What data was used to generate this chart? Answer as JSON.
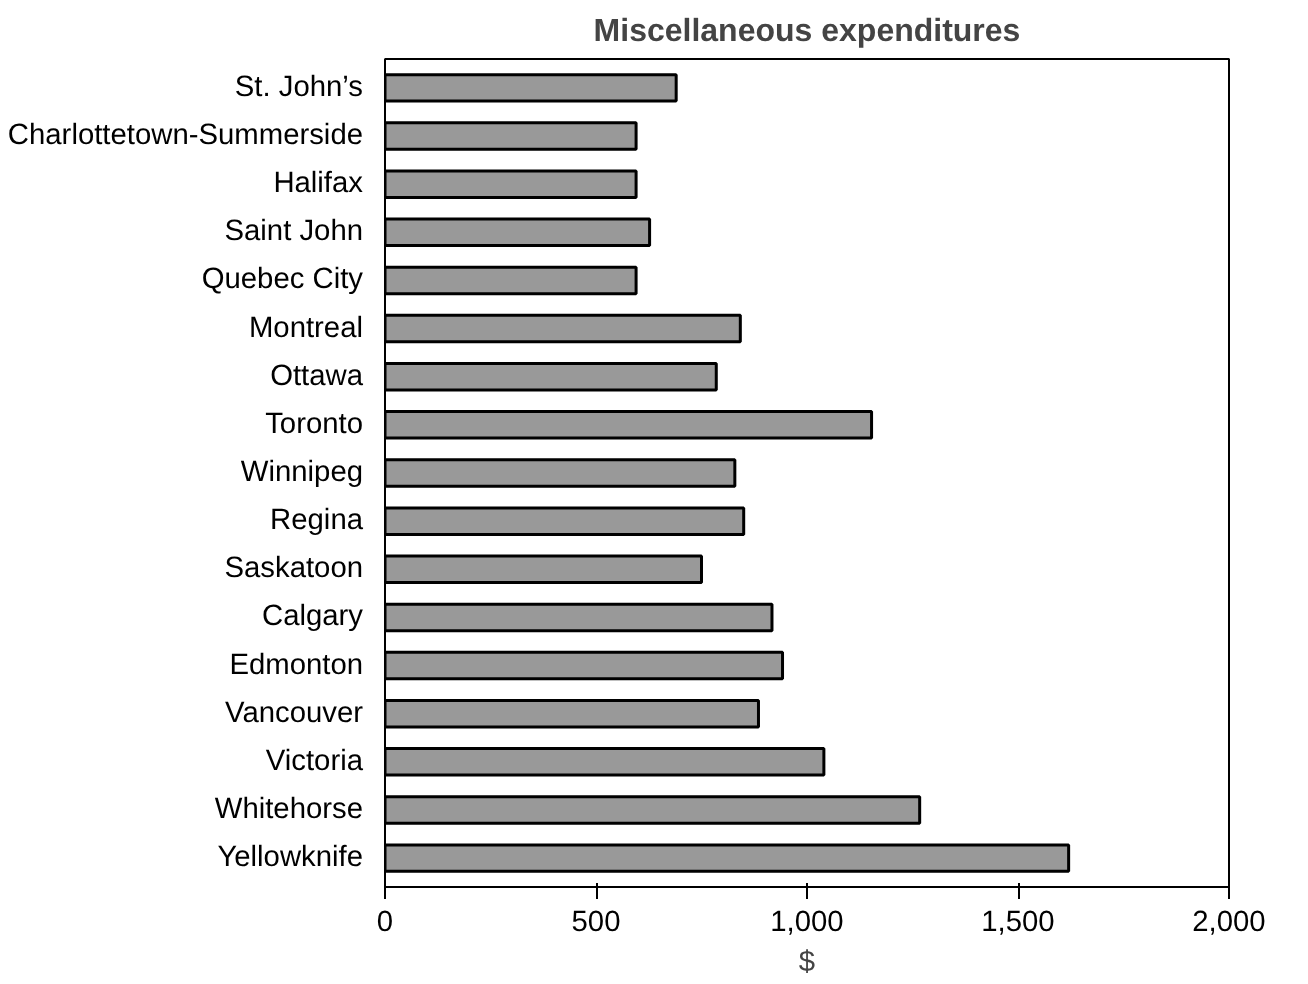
{
  "chart_data": {
    "type": "bar",
    "orientation": "horizontal",
    "title": "Miscellaneous expenditures",
    "xlabel": "$",
    "categories": [
      "St. John’s",
      "Charlottetown-Summerside",
      "Halifax",
      "Saint John",
      "Quebec City",
      "Montreal",
      "Ottawa",
      "Toronto",
      "Winnipeg",
      "Regina",
      "Saskatoon",
      "Calgary",
      "Edmonton",
      "Vancouver",
      "Victoria",
      "Whitehorse",
      "Yellowknife"
    ],
    "values": [
      690,
      595,
      595,
      627,
      595,
      842,
      785,
      1153,
      829,
      850,
      750,
      917,
      942,
      885,
      1040,
      1267,
      1620
    ],
    "color": "#999999",
    "xlim": [
      0,
      2000
    ],
    "xticks": [
      0,
      {
        "value": 500,
        "label": "500"
      },
      {
        "value": 1000,
        "label": "1,000"
      },
      {
        "value": 1500,
        "label": "1,500"
      },
      {
        "value": 2000,
        "label": "2,000"
      }
    ],
    "grid": false
  }
}
